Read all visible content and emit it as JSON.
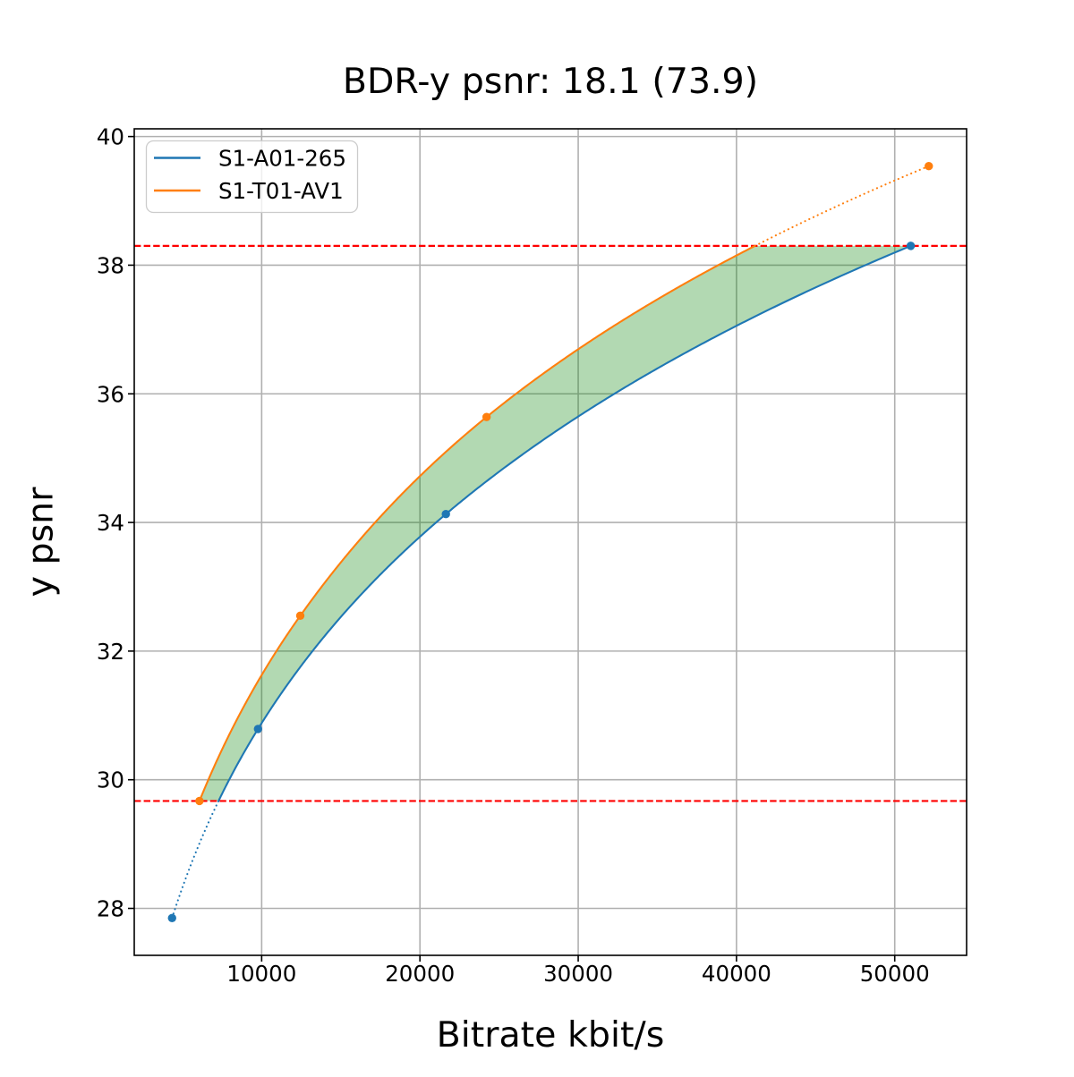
{
  "chart_data": {
    "type": "line",
    "title": "BDR-y psnr: 18.1 (73.9)",
    "xlabel": "Bitrate kbit/s",
    "ylabel": "y psnr",
    "xlim": [
      1950,
      54540
    ],
    "ylim": [
      27.27,
      40.12
    ],
    "x_ticks": [
      10000,
      20000,
      30000,
      40000,
      50000
    ],
    "x_tick_labels": [
      "10000",
      "20000",
      "30000",
      "40000",
      "50000"
    ],
    "y_ticks": [
      28,
      30,
      32,
      34,
      36,
      38,
      40
    ],
    "y_tick_labels": [
      "28",
      "30",
      "32",
      "34",
      "36",
      "38",
      "40"
    ],
    "grid": true,
    "grid_color": "#b0b0b0",
    "background_color": "#ffffff",
    "spine_color": "#000000",
    "interpolation": "pchip-on-log10-x",
    "legend": {
      "position": "upper left",
      "edge_color": "#cccccc",
      "entries": [
        "S1-A01-265",
        "S1-T01-AV1"
      ]
    },
    "series": [
      {
        "name": "S1-A01-265",
        "color": "#1f77b4",
        "x": [
          4340,
          9770,
          21640,
          51010
        ],
        "y": [
          27.85,
          30.79,
          34.13,
          38.3
        ]
      },
      {
        "name": "S1-T01-AV1",
        "color": "#ff7f0e",
        "x": [
          6070,
          12440,
          24210,
          52150
        ],
        "y": [
          29.67,
          32.55,
          35.64,
          39.54
        ]
      }
    ],
    "hlines": [
      {
        "y": 29.67,
        "color": "#ff0000",
        "style": "dashed"
      },
      {
        "y": 38.3,
        "color": "#ff0000",
        "style": "dashed"
      }
    ],
    "fill_between": {
      "color": "#008000",
      "opacity": 0.3,
      "psnr_lower": 29.67,
      "psnr_upper": 38.3
    }
  }
}
